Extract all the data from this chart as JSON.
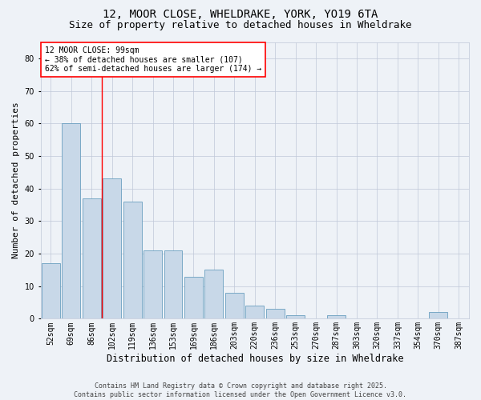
{
  "title_line1": "12, MOOR CLOSE, WHELDRAKE, YORK, YO19 6TA",
  "title_line2": "Size of property relative to detached houses in Wheldrake",
  "xlabel": "Distribution of detached houses by size in Wheldrake",
  "ylabel": "Number of detached properties",
  "categories": [
    "52sqm",
    "69sqm",
    "86sqm",
    "102sqm",
    "119sqm",
    "136sqm",
    "153sqm",
    "169sqm",
    "186sqm",
    "203sqm",
    "220sqm",
    "236sqm",
    "253sqm",
    "270sqm",
    "287sqm",
    "303sqm",
    "320sqm",
    "337sqm",
    "354sqm",
    "370sqm",
    "387sqm"
  ],
  "values": [
    17,
    60,
    37,
    43,
    36,
    21,
    21,
    13,
    15,
    8,
    4,
    3,
    1,
    0,
    1,
    0,
    0,
    0,
    0,
    2,
    0
  ],
  "bar_color": "#c8d8e8",
  "bar_edge_color": "#6a9fc0",
  "annotation_text": "12 MOOR CLOSE: 99sqm\n← 38% of detached houses are smaller (107)\n62% of semi-detached houses are larger (174) →",
  "annotation_box_color": "white",
  "annotation_box_edge": "red",
  "ylim": [
    0,
    85
  ],
  "yticks": [
    0,
    10,
    20,
    30,
    40,
    50,
    60,
    70,
    80
  ],
  "bg_color": "#eef2f7",
  "grid_color": "#c0c8d8",
  "footer_line1": "Contains HM Land Registry data © Crown copyright and database right 2025.",
  "footer_line2": "Contains public sector information licensed under the Open Government Licence v3.0.",
  "title_fontsize": 10,
  "subtitle_fontsize": 9,
  "tick_fontsize": 7,
  "ylabel_fontsize": 8,
  "xlabel_fontsize": 8.5,
  "annot_fontsize": 7,
  "footer_fontsize": 6
}
